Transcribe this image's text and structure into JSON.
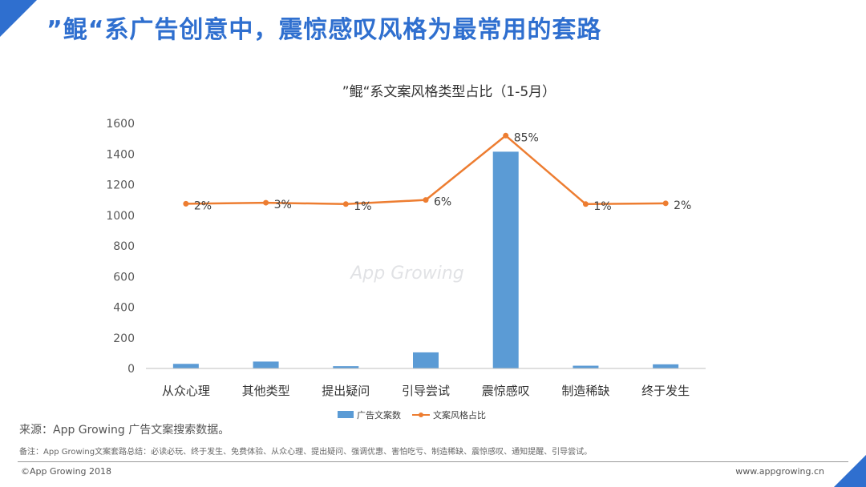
{
  "page": {
    "title": "”鲲“系广告创意中，震惊感叹风格为最常用的套路",
    "accent_color": "#2f6fcf"
  },
  "chart_data": {
    "type": "bar",
    "title": "”鲲“系文案风格类型占比（1-5月）",
    "categories": [
      "从众心理",
      "其他类型",
      "提出疑问",
      "引导尝试",
      "震惊感叹",
      "制造稀缺",
      "终于发生"
    ],
    "series": [
      {
        "name": "广告文案数",
        "type": "bar",
        "color": "#5b9bd5",
        "values": [
          30,
          45,
          15,
          105,
          1415,
          18,
          27
        ]
      },
      {
        "name": "文案风格占比",
        "type": "line",
        "color": "#ed7d31",
        "values": [
          1075,
          1082,
          1073,
          1100,
          1520,
          1073,
          1078
        ],
        "labels": [
          "2%",
          "3%",
          "1%",
          "6%",
          "85%",
          "1%",
          "2%"
        ]
      }
    ],
    "ylim": [
      0,
      1600
    ],
    "yticks": [
      0,
      200,
      400,
      600,
      800,
      1000,
      1200,
      1400,
      1600
    ],
    "grid": false,
    "legend": "bottom",
    "watermark": "App Growing"
  },
  "footer": {
    "source": "来源：App Growing 广告文案搜索数据。",
    "note": "备注：App Growing文案套路总结：必读必玩、终于发生、免费体验、从众心理、提出疑问、强调优惠、害怕吃亏、制造稀缺、震惊感叹、通知提醒、引导尝试。",
    "copyright": "©App Growing 2018",
    "website": "www.appgrowing.cn"
  }
}
